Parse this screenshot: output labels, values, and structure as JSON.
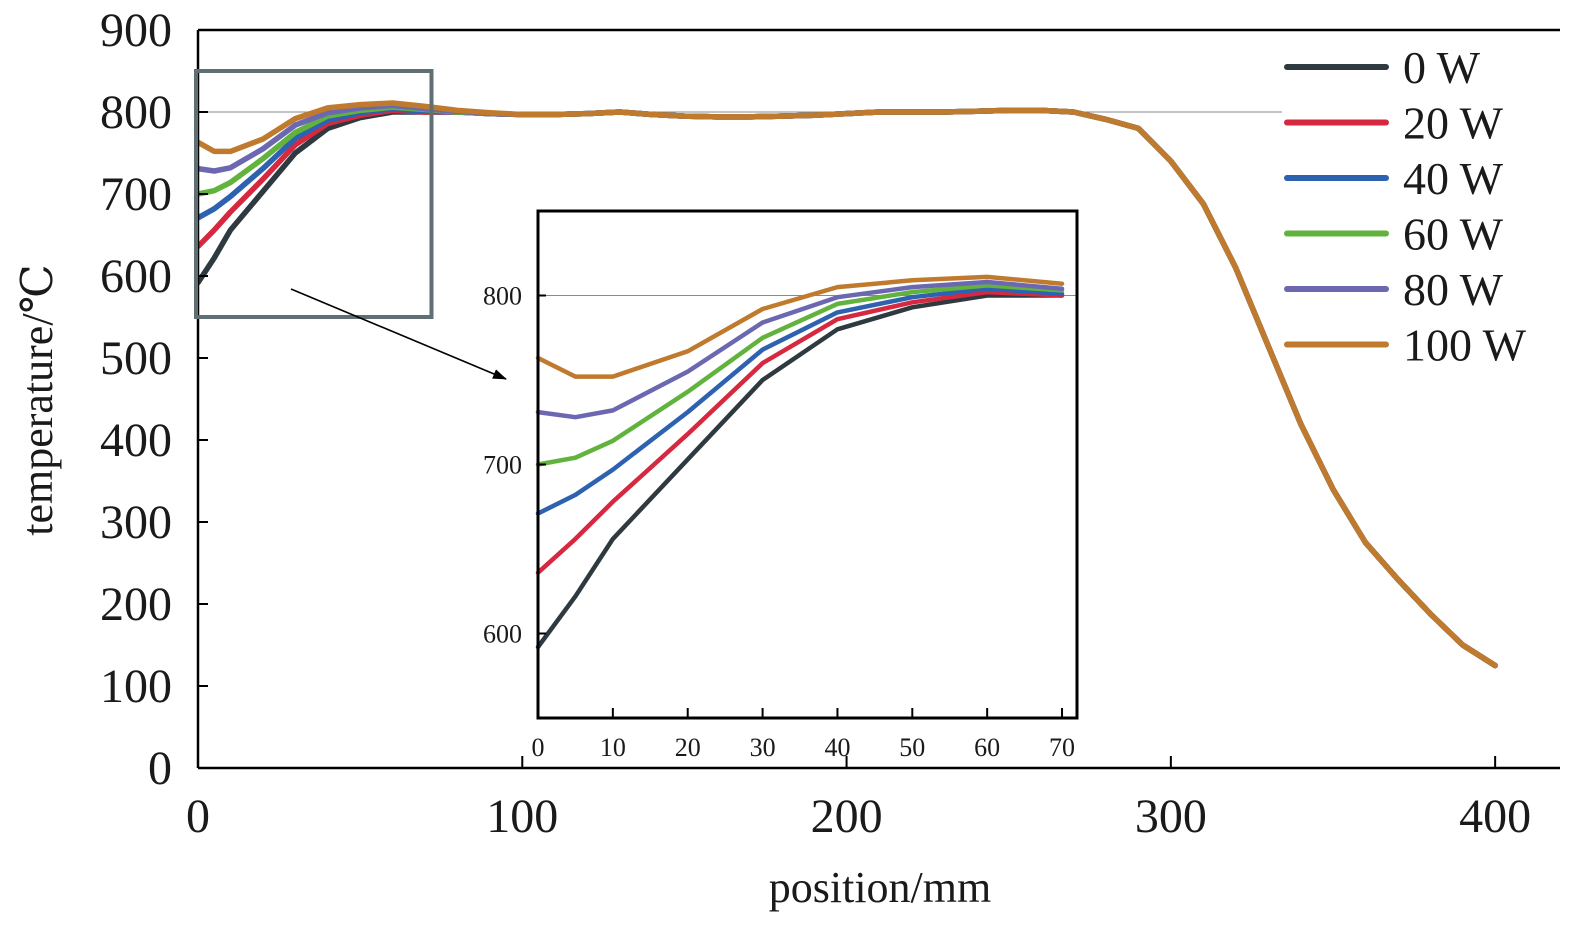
{
  "chart_data": [
    {
      "type": "line",
      "title": "",
      "xlabel": "position/mm",
      "ylabel": "temperature/℃",
      "xlim": [
        0,
        420
      ],
      "ylim": [
        0,
        900
      ],
      "xticks": [
        0,
        100,
        200,
        300,
        400
      ],
      "yticks": [
        0,
        100,
        200,
        300,
        400,
        500,
        600,
        700,
        800,
        900
      ],
      "reference_line": 800,
      "legend_position": "top-right",
      "x": [
        0,
        5,
        10,
        20,
        30,
        40,
        50,
        60,
        70,
        80,
        90,
        100,
        110,
        120,
        130,
        140,
        150,
        160,
        170,
        180,
        190,
        200,
        210,
        220,
        230,
        240,
        250,
        260,
        270,
        280,
        290,
        300,
        310,
        320,
        330,
        340,
        350,
        360,
        370,
        380,
        390,
        400
      ],
      "series": [
        {
          "name": "0 W",
          "color": "#2e3a40",
          "values": [
            592,
            622,
            656,
            703,
            750,
            780,
            793,
            800,
            800,
            800,
            798,
            797,
            797,
            798,
            800,
            797,
            795,
            794,
            794,
            795,
            796,
            798,
            800,
            800,
            800,
            801,
            802,
            802,
            800,
            791,
            780,
            740,
            688,
            610,
            515,
            420,
            340,
            275,
            230,
            188,
            150,
            125
          ]
        },
        {
          "name": "20 W",
          "color": "#d6283e",
          "values": [
            636,
            656,
            678,
            718,
            760,
            786,
            796,
            802,
            800,
            800,
            798,
            797,
            797,
            798,
            800,
            797,
            795,
            794,
            794,
            795,
            796,
            798,
            800,
            800,
            800,
            801,
            802,
            802,
            800,
            791,
            780,
            740,
            688,
            610,
            515,
            420,
            340,
            275,
            230,
            188,
            150,
            125
          ]
        },
        {
          "name": "40 W",
          "color": "#2d62b0",
          "values": [
            671,
            682,
            697,
            731,
            768,
            790,
            799,
            804,
            801,
            800,
            798,
            797,
            797,
            798,
            800,
            797,
            795,
            794,
            794,
            795,
            796,
            798,
            800,
            800,
            800,
            801,
            802,
            802,
            800,
            791,
            780,
            740,
            688,
            610,
            515,
            420,
            340,
            275,
            230,
            188,
            150,
            125
          ]
        },
        {
          "name": "60 W",
          "color": "#62b33e",
          "values": [
            700,
            704,
            714,
            743,
            775,
            795,
            802,
            806,
            803,
            800,
            798,
            797,
            797,
            798,
            800,
            797,
            795,
            794,
            794,
            795,
            796,
            798,
            800,
            800,
            800,
            801,
            802,
            802,
            800,
            791,
            780,
            740,
            688,
            610,
            515,
            420,
            340,
            275,
            230,
            188,
            150,
            125
          ]
        },
        {
          "name": "80 W",
          "color": "#6b68b1",
          "values": [
            731,
            728,
            732,
            755,
            784,
            799,
            805,
            808,
            804,
            801,
            798,
            797,
            797,
            798,
            800,
            797,
            795,
            794,
            794,
            795,
            796,
            798,
            800,
            800,
            800,
            801,
            802,
            802,
            800,
            791,
            780,
            740,
            688,
            610,
            515,
            420,
            340,
            275,
            230,
            188,
            150,
            125
          ]
        },
        {
          "name": "100 W",
          "color": "#bf7a2e",
          "values": [
            763,
            752,
            752,
            767,
            792,
            805,
            809,
            811,
            807,
            802,
            799,
            797,
            797,
            798,
            800,
            797,
            795,
            794,
            794,
            795,
            796,
            798,
            800,
            800,
            800,
            801,
            802,
            802,
            800,
            791,
            780,
            740,
            688,
            610,
            515,
            420,
            340,
            275,
            230,
            188,
            150,
            125
          ]
        }
      ]
    },
    {
      "type": "line",
      "title": "",
      "xlabel": "",
      "ylabel": "",
      "xlim": [
        0,
        72
      ],
      "ylim": [
        550,
        850
      ],
      "xticks": [
        0,
        10,
        20,
        30,
        40,
        50,
        60,
        70
      ],
      "yticks": [
        600,
        700,
        800
      ],
      "reference_line": 800,
      "x": [
        0,
        5,
        10,
        20,
        30,
        40,
        50,
        60,
        70
      ],
      "series": [
        {
          "color": "#2e3a40",
          "values": [
            592,
            622,
            656,
            703,
            750,
            780,
            793,
            800,
            800
          ]
        },
        {
          "color": "#d6283e",
          "values": [
            636,
            656,
            678,
            718,
            760,
            786,
            796,
            802,
            800
          ]
        },
        {
          "color": "#2d62b0",
          "values": [
            671,
            682,
            697,
            731,
            768,
            790,
            799,
            804,
            801
          ]
        },
        {
          "color": "#62b33e",
          "values": [
            700,
            704,
            714,
            743,
            775,
            795,
            802,
            806,
            803
          ]
        },
        {
          "color": "#6b68b1",
          "values": [
            731,
            728,
            732,
            755,
            784,
            799,
            805,
            808,
            804
          ]
        },
        {
          "color": "#bf7a2e",
          "values": [
            763,
            752,
            752,
            767,
            792,
            805,
            809,
            811,
            807
          ]
        }
      ]
    }
  ]
}
